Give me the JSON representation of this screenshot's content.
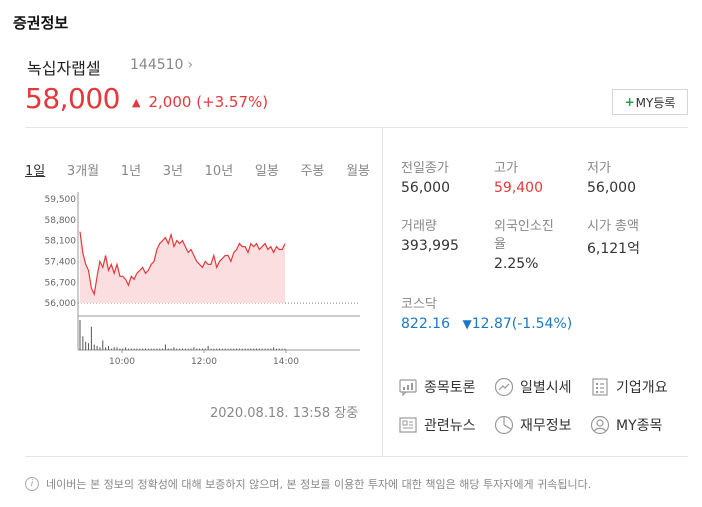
{
  "section_title": "증권정보",
  "stock": {
    "name": "녹십자랩셀",
    "code": "144510",
    "code_chevron": "›",
    "price": "58,000",
    "change_arrow": "▲",
    "change_value": "2,000",
    "change_percent": "(+3.57%)",
    "color_up": "#e4393c",
    "color_down": "#1c78c4"
  },
  "my_button": {
    "plus": "+",
    "label": "MY등록"
  },
  "tabs": [
    {
      "label": "1일",
      "active": true
    },
    {
      "label": "3개월",
      "active": false
    },
    {
      "label": "1년",
      "active": false
    },
    {
      "label": "3년",
      "active": false
    },
    {
      "label": "10년",
      "active": false
    },
    {
      "label": "일봉",
      "active": false
    },
    {
      "label": "주봉",
      "active": false
    },
    {
      "label": "월봉",
      "active": false
    }
  ],
  "chart_data": {
    "type": "line",
    "y_ticks": [
      "59,500",
      "58,800",
      "58,100",
      "57,400",
      "56,700",
      "56,000"
    ],
    "y_tick_values": [
      59500,
      58800,
      58100,
      57400,
      56700,
      56000
    ],
    "ylim": [
      55700,
      59600
    ],
    "x_ticks": [
      "10:00",
      "12:00",
      "14:00"
    ],
    "baseline": 56000,
    "prices": [
      58400,
      57700,
      57300,
      57100,
      56500,
      56300,
      56900,
      57400,
      57200,
      57600,
      57100,
      57300,
      57000,
      57300,
      56900,
      56900,
      56800,
      56600,
      56900,
      56800,
      57000,
      57100,
      57200,
      57000,
      57100,
      57300,
      57400,
      57800,
      58000,
      58100,
      58200,
      58000,
      58300,
      57900,
      58100,
      58000,
      58100,
      57900,
      57700,
      57800,
      57600,
      57400,
      57300,
      57200,
      57400,
      57300,
      57300,
      57600,
      57200,
      57400,
      57500,
      57600,
      57600,
      57400,
      57700,
      57800,
      58000,
      57900,
      57900,
      57700,
      58000,
      57900,
      58000,
      57800,
      57900,
      58000,
      57800,
      57900,
      57700,
      57900,
      57800,
      57800,
      58000
    ],
    "volumes": [
      22,
      10,
      6,
      5,
      17,
      4,
      3,
      2,
      7,
      2,
      3,
      1,
      2,
      2,
      1,
      1,
      2,
      1,
      1,
      1,
      1,
      1,
      1,
      1,
      1,
      1,
      1,
      1,
      1,
      1,
      4,
      1,
      1,
      2,
      1,
      1,
      1,
      1,
      1,
      1,
      2,
      1,
      1,
      1,
      1,
      3,
      1,
      1,
      1,
      1,
      1,
      1,
      1,
      1,
      1,
      1,
      1,
      1,
      1,
      1,
      1,
      1,
      1,
      1,
      1,
      1,
      1,
      1,
      2,
      1,
      1,
      1,
      1
    ]
  },
  "timestamp": "2020.08.18. 13:58 장중",
  "info": {
    "prev_close_label": "전일종가",
    "prev_close": "56,000",
    "high_label": "고가",
    "high": "59,400",
    "low_label": "저가",
    "low": "56,000",
    "volume_label": "거래량",
    "volume": "393,995",
    "foreign_label_1": "외국인소진",
    "foreign_label_2": "율",
    "foreign": "2.25%",
    "mcap_label": "시가 총액",
    "mcap": "6,121억"
  },
  "index": {
    "label": "코스닥",
    "value": "822.16",
    "arrow": "▼",
    "change": "12.87",
    "percent": "(-1.54%)"
  },
  "links": [
    {
      "label": "종목토론",
      "icon": "chat-chart-icon"
    },
    {
      "label": "일별시세",
      "icon": "trend-circle-icon"
    },
    {
      "label": "기업개요",
      "icon": "list-doc-icon"
    },
    {
      "label": "관련뉴스",
      "icon": "news-icon"
    },
    {
      "label": "재무정보",
      "icon": "pie-chart-icon"
    },
    {
      "label": "MY종목",
      "icon": "user-circle-icon"
    }
  ],
  "disclaimer": {
    "icon_text": "i",
    "text": "네이버는 본 정보의 정확성에 대해 보증하지 않으며, 본 정보를 이용한 투자에 대한 책임은 해당 투자자에게 귀속됩니다."
  }
}
